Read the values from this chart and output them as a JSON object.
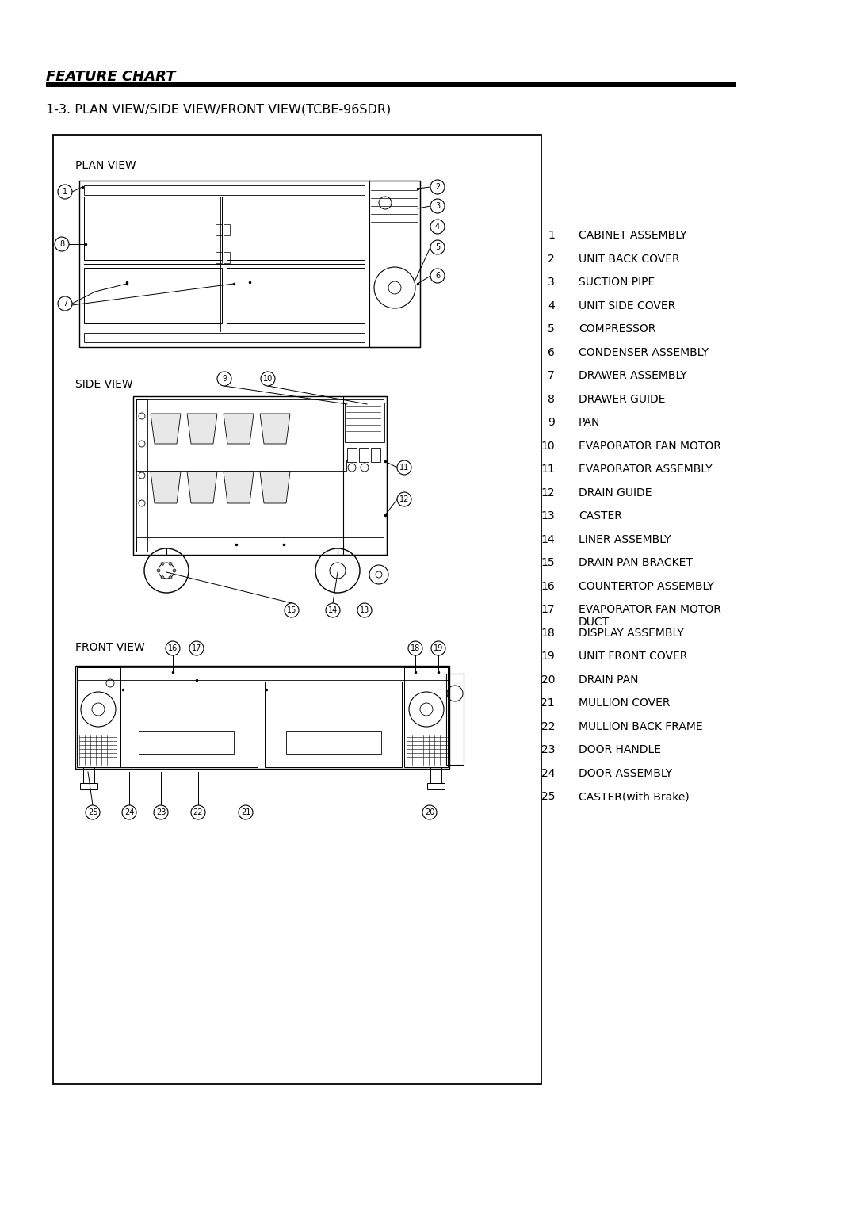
{
  "page_title": "FEATURE CHART",
  "section_title": "1-3. PLAN VIEW/SIDE VIEW/FRONT VIEW(TCBE-96SDR)",
  "bg_color": "#ffffff",
  "parts": [
    [
      1,
      "CABINET ASSEMBLY"
    ],
    [
      2,
      "UNIT BACK COVER"
    ],
    [
      3,
      "SUCTION PIPE"
    ],
    [
      4,
      "UNIT SIDE COVER"
    ],
    [
      5,
      "COMPRESSOR"
    ],
    [
      6,
      "CONDENSER ASSEMBLY"
    ],
    [
      7,
      "DRAWER ASSEMBLY"
    ],
    [
      8,
      "DRAWER GUIDE"
    ],
    [
      9,
      "PAN"
    ],
    [
      10,
      "EVAPORATOR FAN MOTOR"
    ],
    [
      11,
      "EVAPORATOR ASSEMBLY"
    ],
    [
      12,
      "DRAIN GUIDE"
    ],
    [
      13,
      "CASTER"
    ],
    [
      14,
      "LINER ASSEMBLY"
    ],
    [
      15,
      "DRAIN PAN BRACKET"
    ],
    [
      16,
      "COUNTERTOP ASSEMBLY"
    ],
    [
      17,
      "EVAPORATOR FAN MOTOR\nDUCT"
    ],
    [
      18,
      "DISPLAY ASSEMBLY"
    ],
    [
      19,
      "UNIT FRONT COVER"
    ],
    [
      20,
      "DRAIN PAN"
    ],
    [
      21,
      "MULLION COVER"
    ],
    [
      22,
      "MULLION BACK FRAME"
    ],
    [
      23,
      "DOOR HANDLE"
    ],
    [
      24,
      "DOOR ASSEMBLY"
    ],
    [
      25,
      "CASTER(with Brake)"
    ]
  ]
}
